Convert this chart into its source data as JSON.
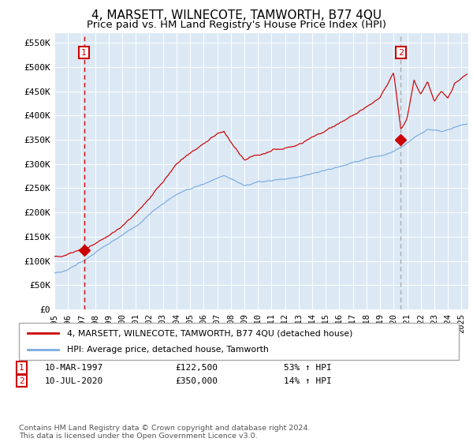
{
  "title": "4, MARSETT, WILNECOTE, TAMWORTH, B77 4QU",
  "subtitle": "Price paid vs. HM Land Registry's House Price Index (HPI)",
  "title_fontsize": 11,
  "subtitle_fontsize": 9.5,
  "bg_color": "#dce9f5",
  "plot_bg_color": "#dce9f5",
  "line_color_red": "#cc0000",
  "line_color_blue": "#7aabe0",
  "marker_color": "#cc0000",
  "vline_color_red": "#cc0000",
  "vline_color_gray": "#aaaaaa",
  "legend_label_red": "4, MARSETT, WILNECOTE, TAMWORTH, B77 4QU (detached house)",
  "legend_label_blue": "HPI: Average price, detached house, Tamworth",
  "sale1_year": 1997.19,
  "sale1_price": 122500,
  "sale2_year": 2020.52,
  "sale2_price": 350000,
  "footer": "Contains HM Land Registry data © Crown copyright and database right 2024.\nThis data is licensed under the Open Government Licence v3.0.",
  "ylim": [
    0,
    570000
  ],
  "yticks": [
    0,
    50000,
    100000,
    150000,
    200000,
    250000,
    300000,
    350000,
    400000,
    450000,
    500000,
    550000
  ],
  "ytick_labels": [
    "£0",
    "£50K",
    "£100K",
    "£150K",
    "£200K",
    "£250K",
    "£300K",
    "£350K",
    "£400K",
    "£450K",
    "£500K",
    "£550K"
  ],
  "start_year": 1995.0,
  "end_year": 2025.5
}
